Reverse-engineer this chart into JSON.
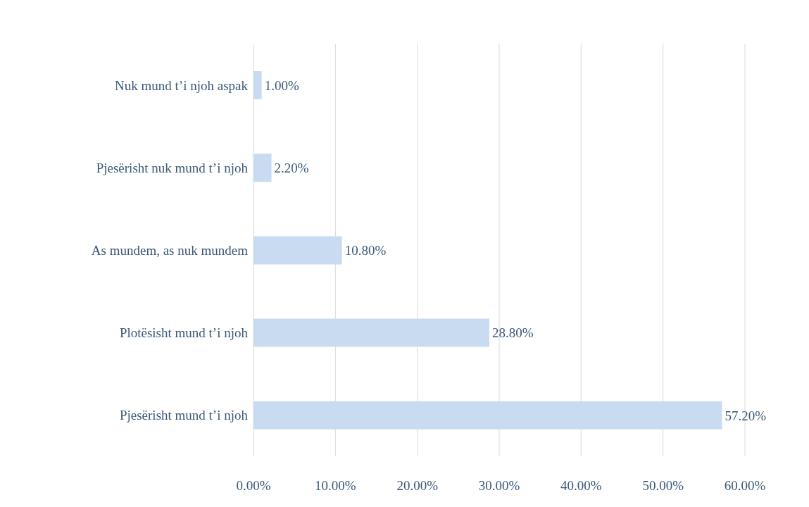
{
  "chart_data": {
    "type": "bar",
    "orientation": "horizontal",
    "categories": [
      "Nuk mund t’i njoh aspak",
      "Pjesërisht nuk mund t’i njoh",
      "As mundem, as nuk mundem",
      "Plotësisht mund t’i njoh",
      "Pjesërisht mund t’i njoh"
    ],
    "values": [
      1.0,
      2.2,
      10.8,
      28.8,
      57.2
    ],
    "color": "#c9dbf0",
    "value_labels": [
      "1.00%",
      "2.20%",
      "10.80%",
      "28.80%",
      "57.20%"
    ],
    "xlim": [
      0,
      60
    ],
    "xticks": [
      {
        "value": 0,
        "label": "0.00%"
      },
      {
        "value": 10,
        "label": "10.00%"
      },
      {
        "value": 20,
        "label": "20.00%"
      },
      {
        "value": 30,
        "label": "30.00%"
      },
      {
        "value": 40,
        "label": "40.00%"
      },
      {
        "value": 50,
        "label": "50.00%"
      },
      {
        "value": 60,
        "label": "60.00%"
      }
    ],
    "grid": "x"
  }
}
